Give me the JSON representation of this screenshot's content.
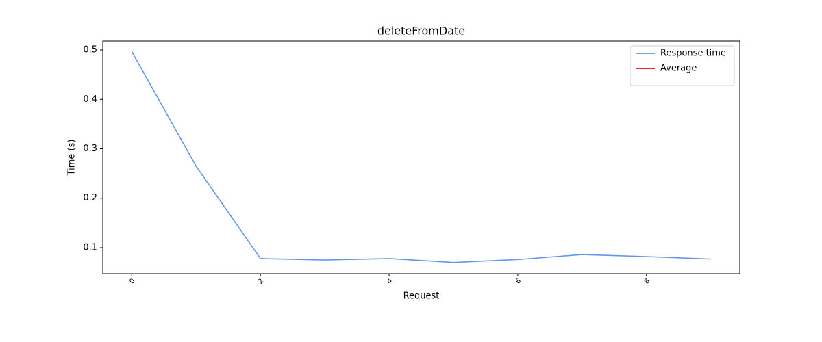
{
  "chart_data": {
    "type": "line",
    "title": "deleteFromDate",
    "x_label": "Request",
    "y_label": "Time (s)",
    "x": [
      0,
      1,
      2,
      3,
      4,
      5,
      6,
      7,
      8,
      9
    ],
    "series": [
      {
        "name": "Response time",
        "color": "#6495ed",
        "values": [
          0.497,
          0.265,
          0.078,
          0.075,
          0.078,
          0.07,
          0.076,
          0.086,
          0.082,
          0.077
        ]
      },
      {
        "name": "Average",
        "color": "#ff0000",
        "values": [
          null,
          null,
          null,
          null,
          null,
          null,
          null,
          null,
          null,
          null
        ]
      }
    ],
    "xlim": [
      -0.45,
      9.45
    ],
    "xticks": [
      0,
      2,
      4,
      6,
      8
    ],
    "ylim": [
      0.0474,
      0.518
    ],
    "yticks": [
      0.1,
      0.2,
      0.3,
      0.4,
      0.5
    ],
    "legend": "upper right",
    "grid": false
  }
}
